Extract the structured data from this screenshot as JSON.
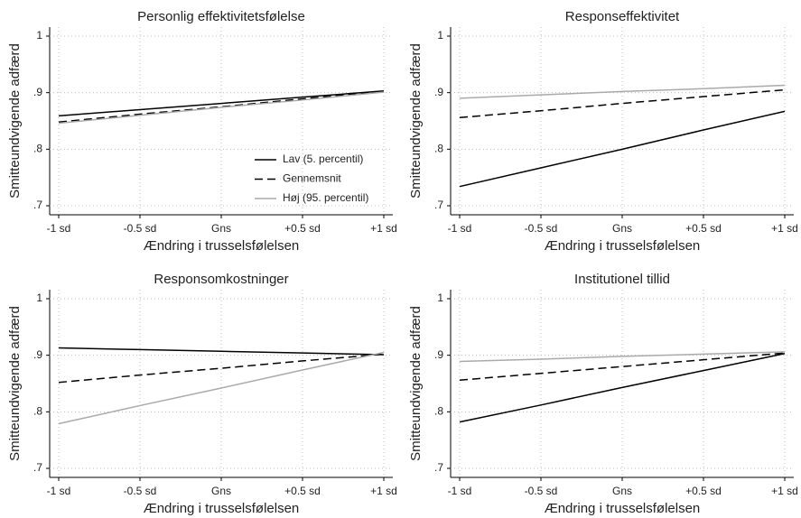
{
  "chart_data": [
    {
      "type": "line",
      "title": "Personlig effektivitetsfølelse",
      "x_label": "Ændring i trusselsfølelsen",
      "y_label": "Smitteundvigende adfærd",
      "categories": [
        "-1 sd",
        "-0.5 sd",
        "Gns",
        "+0.5 sd",
        "+1 sd"
      ],
      "ylim": [
        0.7,
        1
      ],
      "yticks": [
        {
          "value": 0.7,
          "label": ".7"
        },
        {
          "value": 0.8,
          "label": ".8"
        },
        {
          "value": 0.9,
          "label": ".9"
        },
        1
      ],
      "grid": true,
      "legend": "lower right",
      "series": [
        {
          "name": "Lav (5. percentil)",
          "color": "#000000",
          "dash": "solid",
          "values": [
            0.859,
            0.87,
            0.881,
            0.892,
            0.903
          ]
        },
        {
          "name": "Gennemsnit",
          "color": "#000000",
          "dash": "dashed",
          "values": [
            0.848,
            0.862,
            0.875,
            0.889,
            0.902
          ]
        },
        {
          "name": "Høj (95. percentil)",
          "color": "#aaaaaa",
          "dash": "solid",
          "values": [
            0.846,
            0.86,
            0.874,
            0.887,
            0.901
          ]
        }
      ]
    },
    {
      "type": "line",
      "title": "Responseffektivitet",
      "x_label": "Ændring i trusselsfølelsen",
      "y_label": "Smitteundvigende adfærd",
      "categories": [
        "-1 sd",
        "-0.5 sd",
        "Gns",
        "+0.5 sd",
        "+1 sd"
      ],
      "ylim": [
        0.7,
        1
      ],
      "yticks": [
        {
          "value": 0.7,
          "label": ".7"
        },
        {
          "value": 0.8,
          "label": ".8"
        },
        {
          "value": 0.9,
          "label": ".9"
        },
        1
      ],
      "grid": true,
      "series": [
        {
          "color": "#000000",
          "dash": "solid",
          "values": [
            0.734,
            0.767,
            0.8,
            0.834,
            0.867
          ]
        },
        {
          "color": "#000000",
          "dash": "dashed",
          "values": [
            0.856,
            0.868,
            0.881,
            0.893,
            0.905
          ]
        },
        {
          "color": "#aaaaaa",
          "dash": "solid",
          "values": [
            0.89,
            0.896,
            0.902,
            0.907,
            0.913
          ]
        }
      ]
    },
    {
      "type": "line",
      "title": "Responsomkostninger",
      "x_label": "Ændring i trusselsfølelsen",
      "y_label": "Smitteundvigende adfærd",
      "categories": [
        "-1 sd",
        "-0.5 sd",
        "Gns",
        "+0.5 sd",
        "+1 sd"
      ],
      "ylim": [
        0.7,
        1
      ],
      "yticks": [
        {
          "value": 0.7,
          "label": ".7"
        },
        {
          "value": 0.8,
          "label": ".8"
        },
        {
          "value": 0.9,
          "label": ".9"
        },
        1
      ],
      "grid": true,
      "series": [
        {
          "color": "#000000",
          "dash": "solid",
          "values": [
            0.913,
            0.91,
            0.907,
            0.904,
            0.901
          ]
        },
        {
          "color": "#000000",
          "dash": "dashed",
          "values": [
            0.852,
            0.865,
            0.877,
            0.89,
            0.902
          ]
        },
        {
          "color": "#aaaaaa",
          "dash": "solid",
          "values": [
            0.779,
            0.811,
            0.842,
            0.874,
            0.905
          ]
        }
      ]
    },
    {
      "type": "line",
      "title": "Institutionel tillid",
      "x_label": "Ændring i trusselsfølelsen",
      "y_label": "Smitteundvigende adfærd",
      "categories": [
        "-1 sd",
        "-0.5 sd",
        "Gns",
        "+0.5 sd",
        "+1 sd"
      ],
      "ylim": [
        0.7,
        1
      ],
      "yticks": [
        {
          "value": 0.7,
          "label": ".7"
        },
        {
          "value": 0.8,
          "label": ".8"
        },
        {
          "value": 0.9,
          "label": ".9"
        },
        1
      ],
      "grid": true,
      "series": [
        {
          "color": "#000000",
          "dash": "solid",
          "values": [
            0.782,
            0.812,
            0.843,
            0.873,
            0.903
          ]
        },
        {
          "color": "#000000",
          "dash": "dashed",
          "values": [
            0.856,
            0.868,
            0.88,
            0.892,
            0.904
          ]
        },
        {
          "color": "#aaaaaa",
          "dash": "solid",
          "values": [
            0.889,
            0.893,
            0.898,
            0.902,
            0.906
          ]
        }
      ]
    }
  ]
}
